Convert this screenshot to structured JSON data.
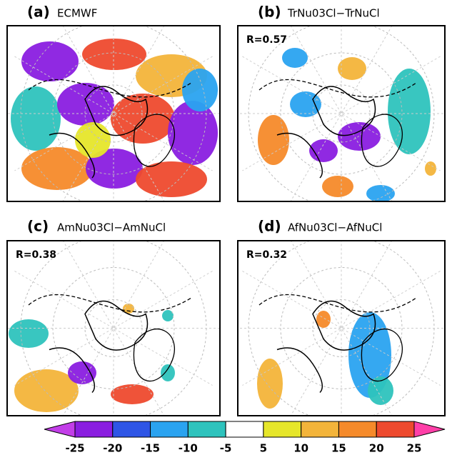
{
  "panels": [
    {
      "label": "(a)",
      "name": "ECMWF"
    },
    {
      "label": "(b)",
      "name": "TrNu03Cl−TrNuCl",
      "r": "R=0.57"
    },
    {
      "label": "(c)",
      "name": "AmNu03Cl−AmNuCl",
      "r": "R=0.38"
    },
    {
      "label": "(d)",
      "name": "AfNu03Cl−AfNuCl",
      "r": "R=0.32"
    }
  ],
  "colorbar": {
    "ticks": [
      -25,
      -20,
      -15,
      -10,
      -5,
      5,
      10,
      15,
      20,
      25
    ],
    "under_color": "#c23ee8",
    "over_color": "#ff3fa8",
    "colors": [
      "#8a1ee0",
      "#2e55e6",
      "#2aa3f0",
      "#2ec3bd",
      "#ffffff",
      "#e6e62a",
      "#f3b43a",
      "#f58a2a",
      "#ee4a2e"
    ]
  }
}
